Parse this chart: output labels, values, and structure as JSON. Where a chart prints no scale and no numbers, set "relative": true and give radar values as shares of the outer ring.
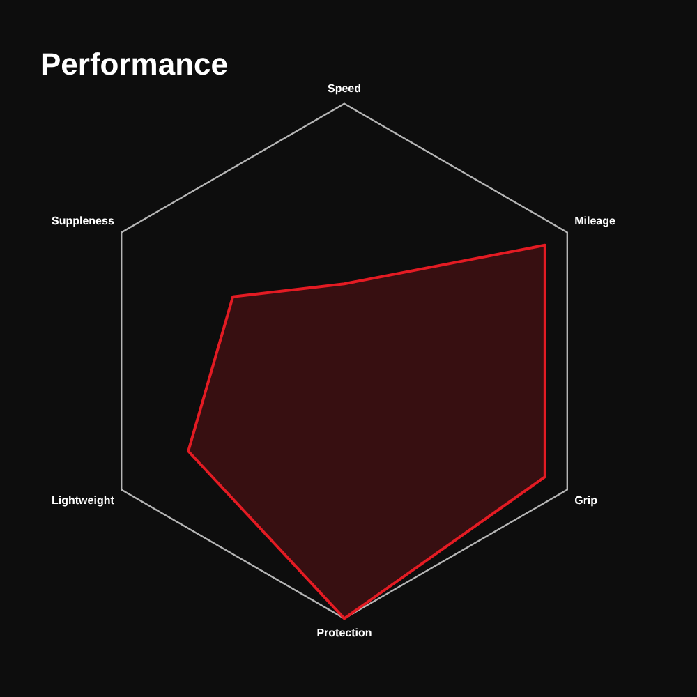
{
  "chart_data": {
    "type": "radar",
    "title": "Performance",
    "relative": true,
    "marker": "none",
    "categories": [
      "Speed",
      "Mileage",
      "Grip",
      "Protection",
      "Lightweight",
      "Suppleness"
    ],
    "series": [
      {
        "color": "#e31b23",
        "values": [
          0.3,
          0.9,
          0.9,
          1,
          0.7,
          0.5
        ]
      }
    ]
  }
}
